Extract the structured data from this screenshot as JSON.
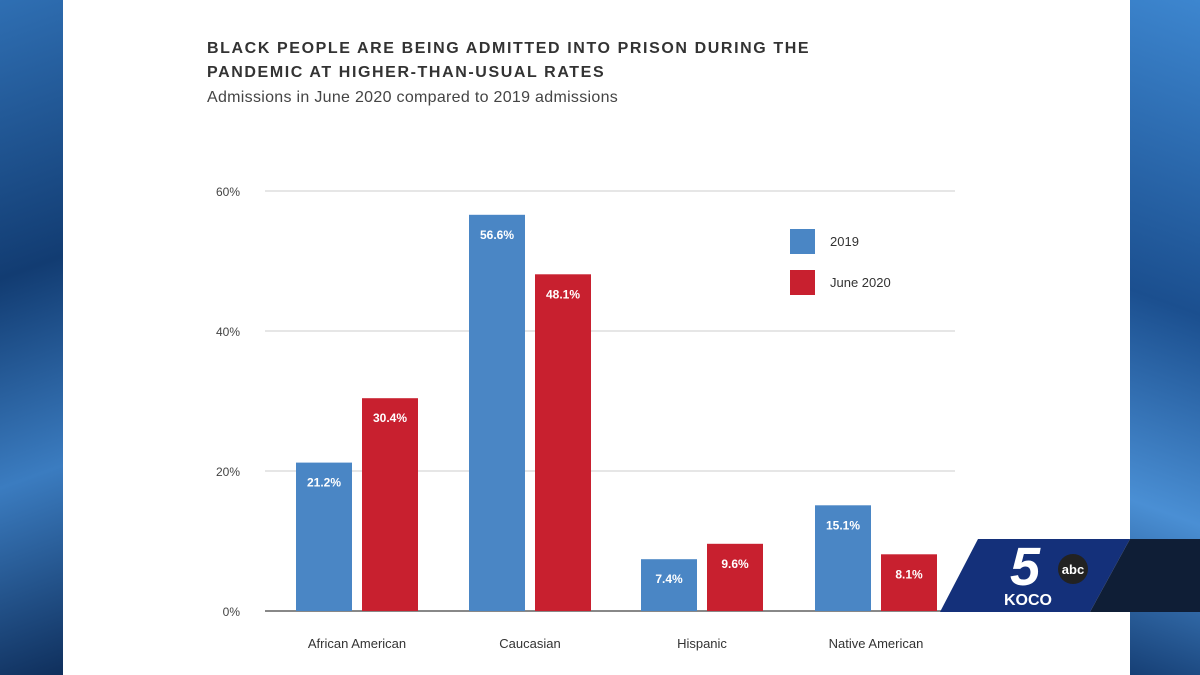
{
  "chart_data": {
    "type": "bar",
    "title": "BLACK PEOPLE ARE BEING ADMITTED INTO PRISON DURING THE PANDEMIC AT HIGHER-THAN-USUAL RATES",
    "subtitle": "Admissions in June 2020 compared to 2019 admissions",
    "categories": [
      "African American",
      "Caucasian",
      "Hispanic",
      "Native American"
    ],
    "series": [
      {
        "name": "2019",
        "color": "#4a86c5",
        "values": [
          21.2,
          56.6,
          7.4,
          15.1
        ],
        "labels": [
          "21.2%",
          "56.6%",
          "7.4%",
          "15.1%"
        ]
      },
      {
        "name": "June 2020",
        "color": "#c8202f",
        "values": [
          30.4,
          48.1,
          9.6,
          8.1
        ],
        "labels": [
          "30.4%",
          "48.1%",
          "9.6%",
          "8.1%"
        ]
      }
    ],
    "yticks": [
      "0%",
      "20%",
      "40%",
      "60%"
    ],
    "ytick_values": [
      0,
      20,
      40,
      60
    ],
    "ylim": [
      0,
      60
    ],
    "grid": true,
    "legend": "top-right",
    "xlabel": "",
    "ylabel": ""
  },
  "branding": {
    "station": "KOCO",
    "channel": "5",
    "network": "abc"
  }
}
